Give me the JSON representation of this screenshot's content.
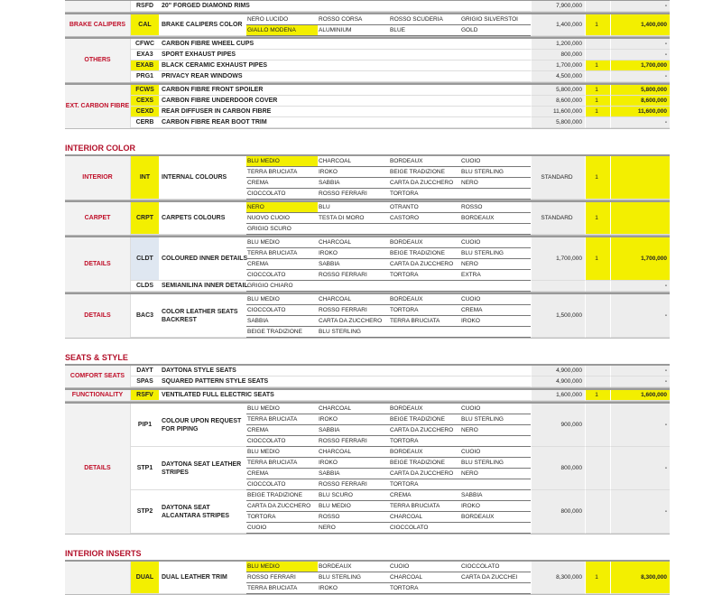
{
  "colors": {
    "highlight": "#f3ef00",
    "category_text": "#c0102a",
    "section_title": "#b3102a"
  },
  "sections": [
    {
      "title": "",
      "groups": [
        {
          "category": "",
          "items": [
            {
              "code": "RSFD",
              "desc": "20\" FORGED DIAMOND RIMS",
              "price": "7,900,000",
              "qty": "",
              "total": "-"
            }
          ]
        },
        {
          "category": "BRAKE CALIPERS",
          "items": [
            {
              "code": "CAL",
              "hl": true,
              "desc": "BRAKE CALIPERS COLOR",
              "options": [
                [
                  "NERO LUCIDO",
                  "ROSSO CORSA",
                  "ROSSO SCUDERIA",
                  "GRIGIO SILVERSTOI"
                ],
                [
                  "GIALLO MODENA",
                  "ALUMINIUM",
                  "BLUE",
                  "GOLD"
                ]
              ],
              "selected": [
                1,
                0
              ],
              "price": "1,400,000",
              "qty": "1",
              "total": "1,400,000"
            }
          ]
        },
        {
          "category": "OTHERS",
          "items": [
            {
              "code": "CFWC",
              "desc": "CARBON FIBRE WHEEL CUPS",
              "price": "1,200,000",
              "qty": "",
              "total": "-"
            },
            {
              "code": "EXA3",
              "desc": "SPORT EXHAUST PIPES",
              "price": "800,000",
              "qty": "",
              "total": "-"
            },
            {
              "code": "EXAB",
              "hl": true,
              "desc": "BLACK CERAMIC EXHAUST PIPES",
              "price": "1,700,000",
              "qty": "1",
              "total": "1,700,000"
            },
            {
              "code": "PRG1",
              "desc": "PRIVACY REAR WINDOWS",
              "price": "4,500,000",
              "qty": "",
              "total": "-"
            }
          ]
        },
        {
          "category": "EXT. CARBON FIBRE",
          "items": [
            {
              "code": "FCWS",
              "hl": true,
              "desc": "CARBON FIBRE FRONT SPOILER",
              "price": "5,800,000",
              "qty": "1",
              "total": "5,800,000"
            },
            {
              "code": "CEXS",
              "hl": true,
              "desc": "CARBON FIBRE UNDERDOOR COVER",
              "price": "8,600,000",
              "qty": "1",
              "total": "8,600,000"
            },
            {
              "code": "CEXD",
              "hl": true,
              "desc": "REAR DIFFUSER IN CARBON FIBRE",
              "price": "11,600,000",
              "qty": "1",
              "total": "11,600,000"
            },
            {
              "code": "CERB",
              "desc": "CARBON FIBRE REAR BOOT TRIM",
              "price": "5,800,000",
              "qty": "",
              "total": "-"
            }
          ]
        }
      ]
    },
    {
      "title": "INTERIOR COLOR",
      "groups": [
        {
          "category": "INTERIOR",
          "items": [
            {
              "code": "INT",
              "hl": true,
              "desc": "INTERNAL COLOURS",
              "options": [
                [
                  "BLU MEDIO",
                  "CHARCOAL",
                  "BORDEAUX",
                  "CUOIO"
                ],
                [
                  "TERRA BRUCIATA",
                  "IROKO",
                  "BEIGE TRADIZIONE",
                  "BLU STERLING"
                ],
                [
                  "CREMA",
                  "SABBIA",
                  "CARTA DA ZUCCHERO",
                  "NERO"
                ],
                [
                  "CIOCCOLATO",
                  "ROSSO FERRARI",
                  "TORTORA",
                  ""
                ]
              ],
              "selected": [
                0,
                0
              ],
              "price": "STANDARD",
              "qty": "1",
              "total": "",
              "hlTotal": true
            }
          ]
        },
        {
          "category": "CARPET",
          "items": [
            {
              "code": "CRPT",
              "hl": true,
              "desc": "CARPETS COLOURS",
              "options": [
                [
                  "NERO",
                  "BLU",
                  "OTRANTO",
                  "ROSSO"
                ],
                [
                  "NUOVO CUOIO",
                  "TESTA DI MORO",
                  "CASTORO",
                  "BORDEAUX"
                ],
                [
                  "GRIGIO SCURO",
                  "",
                  "",
                  ""
                ]
              ],
              "selected": [
                0,
                0
              ],
              "price": "STANDARD",
              "qty": "1",
              "total": "",
              "hlTotal": true
            }
          ]
        },
        {
          "category": "DETAILS",
          "items": [
            {
              "code": "CLDT",
              "blue": true,
              "desc": "COLOURED INNER DETAILS",
              "options": [
                [
                  "BLU MEDIO",
                  "CHARCOAL",
                  "BORDEAUX",
                  "CUOIO"
                ],
                [
                  "TERRA BRUCIATA",
                  "IROKO",
                  "BEIGE TRADIZIONE",
                  "BLU STERLING"
                ],
                [
                  "CREMA",
                  "SABBIA",
                  "CARTA DA ZUCCHERO",
                  "NERO"
                ],
                [
                  "CIOCCOLATO",
                  "ROSSO FERRARI",
                  "TORTORA",
                  "EXTRA"
                ]
              ],
              "price": "1,700,000",
              "qty": "1",
              "total": "1,700,000"
            },
            {
              "code": "CLDS",
              "desc": "SEMIANILINA INNER DETAIL",
              "options": [
                [
                  "GRIGIO CHIARO",
                  "",
                  "",
                  ""
                ]
              ],
              "price": "",
              "qty": "",
              "total": "-"
            }
          ]
        },
        {
          "category": "DETAILS",
          "items": [
            {
              "code": "BAC3",
              "desc": "COLOR LEATHER SEATS BACKREST",
              "wrap": true,
              "options": [
                [
                  "BLU MEDIO",
                  "CHARCOAL",
                  "BORDEAUX",
                  "CUOIO"
                ],
                [
                  "CIOCCOLATO",
                  "ROSSO FERRARI",
                  "TORTORA",
                  "CREMA"
                ],
                [
                  "SABBIA",
                  "CARTA DA ZUCCHERO",
                  "TERRA BRUCIATA",
                  "IROKO"
                ],
                [
                  "BEIGE TRADIZIONE",
                  "BLU STERLING",
                  "",
                  ""
                ]
              ],
              "price": "1,500,000",
              "qty": "",
              "total": "-"
            }
          ]
        }
      ]
    },
    {
      "title": "SEATS & STYLE",
      "groups": [
        {
          "category": "COMFORT SEATS",
          "items": [
            {
              "code": "DAYT",
              "desc": "DAYTONA STYLE SEATS",
              "price": "4,900,000",
              "qty": "",
              "total": "-"
            },
            {
              "code": "SPAS",
              "desc": "SQUARED PATTERN STYLE SEATS",
              "price": "4,900,000",
              "qty": "",
              "total": "-"
            }
          ]
        },
        {
          "category": "FUNCTIONALITY",
          "items": [
            {
              "code": "RSFV",
              "hl": true,
              "desc": "VENTILATED FULL ELECTRIC SEATS",
              "price": "1,600,000",
              "qty": "1",
              "total": "1,600,000"
            }
          ]
        },
        {
          "category": "DETAILS",
          "items": [
            {
              "code": "PIP1",
              "desc": "COLOUR UPON REQUEST FOR PIPING",
              "wrap": true,
              "options": [
                [
                  "BLU MEDIO",
                  "CHARCOAL",
                  "BORDEAUX",
                  "CUOIO"
                ],
                [
                  "TERRA BRUCIATA",
                  "IROKO",
                  "BEIGE TRADIZIONE",
                  "BLU STERLING"
                ],
                [
                  "CREMA",
                  "SABBIA",
                  "CARTA DA ZUCCHERO",
                  "NERO"
                ],
                [
                  "CIOCCOLATO",
                  "ROSSO FERRARI",
                  "TORTORA",
                  ""
                ]
              ],
              "price": "900,000",
              "qty": "",
              "total": "-"
            },
            {
              "code": "STP1",
              "desc": "DAYTONA SEAT LEATHER STRIPES",
              "wrap": true,
              "options": [
                [
                  "BLU MEDIO",
                  "CHARCOAL",
                  "BORDEAUX",
                  "CUOIO"
                ],
                [
                  "TERRA BRUCIATA",
                  "IROKO",
                  "BEIGE TRADIZIONE",
                  "BLU STERLING"
                ],
                [
                  "CREMA",
                  "SABBIA",
                  "CARTA DA ZUCCHERO",
                  "NERO"
                ],
                [
                  "CIOCCOLATO",
                  "ROSSO FERRARI",
                  "TORTORA",
                  ""
                ]
              ],
              "price": "800,000",
              "qty": "",
              "total": "-"
            },
            {
              "code": "STP2",
              "desc": "DAYTONA SEAT ALCANTARA STRIPES",
              "wrap": true,
              "options": [
                [
                  "BEIGE TRADIZIONE",
                  "BLU SCURO",
                  "CREMA",
                  "SABBIA"
                ],
                [
                  "CARTA DA ZUCCHERO",
                  "BLU MEDIO",
                  "TERRA BRUCIATA",
                  "IROKO"
                ],
                [
                  "TORTORA",
                  "ROSSO",
                  "CHARCOAL",
                  "BORDEAUX"
                ],
                [
                  "CUOIO",
                  "NERO",
                  "CIOCCOLATO",
                  ""
                ]
              ],
              "price": "800,000",
              "qty": "",
              "total": "-"
            }
          ]
        }
      ]
    },
    {
      "title": "INTERIOR INSERTS",
      "groups": [
        {
          "category": "",
          "items": [
            {
              "code": "DUAL",
              "hl": true,
              "desc": "DUAL LEATHER TRIM",
              "options": [
                [
                  "BLU MEDIO",
                  "BORDEAUX",
                  "CUOIO",
                  "CIOCCOLATO"
                ],
                [
                  "ROSSO FERRARI",
                  "BLU STERLING",
                  "CHARCOAL",
                  "CARTA DA ZUCCHEI"
                ],
                [
                  "TERRA BRUCIATA",
                  "IROKO",
                  "TORTORA",
                  ""
                ]
              ],
              "selected": [
                0,
                0
              ],
              "price": "8,300,000",
              "qty": "1",
              "total": "8,300,000"
            }
          ]
        }
      ]
    }
  ]
}
